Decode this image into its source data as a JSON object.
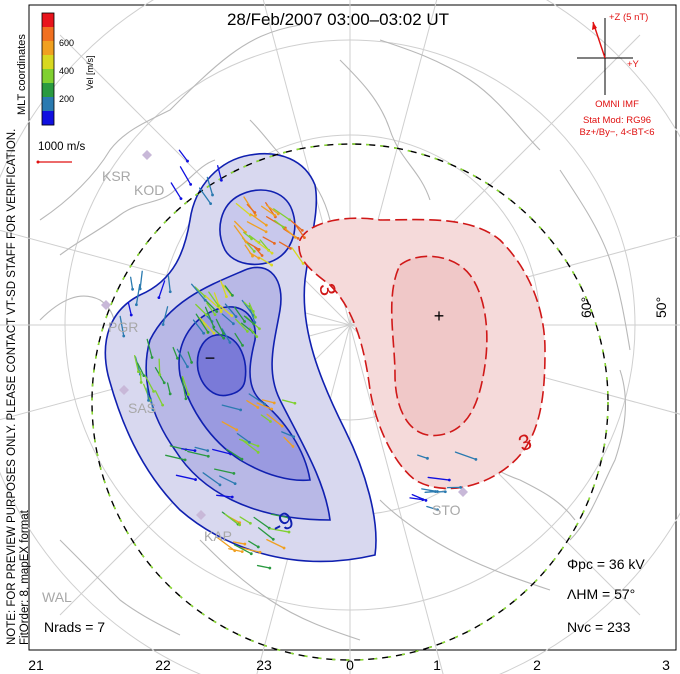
{
  "title": "28/Feb/2007 03:00–03:02 UT",
  "side_note_line1": "NOTE: FOR PREVIEW PURPOSES ONLY. PLEASE CONTACT VT-SD STAFF FOR VERIFICATION.",
  "side_note_line2": "FitOrder: 8, mapEX format",
  "coord_label": "MLT coordinates",
  "colorbar": {
    "label": "Vel [m/s]",
    "ticks": [
      "600",
      "400",
      "200"
    ],
    "colors": [
      "#e8141c",
      "#f07020",
      "#f0a020",
      "#d8d820",
      "#80d030",
      "#2a9a40",
      "#2a7ab0",
      "#1010e0"
    ]
  },
  "vector_scale_label": "1000 m/s",
  "imf": {
    "z_label": "+Z (5 nT)",
    "y_label": "+Y",
    "source": "OMNI IMF",
    "stat_mod": "Stat Mod: RG96",
    "condition": "Bz+/By−, 4<BT<6",
    "color": "#e01010"
  },
  "lat_labels": [
    "60°",
    "50°"
  ],
  "contour_labels": {
    "neg": "-9",
    "pos": "3",
    "pos2": "3"
  },
  "extrema": {
    "min": "−",
    "max": "+"
  },
  "stations": [
    "KSR",
    "KOD",
    "PGR",
    "SAS",
    "KAP",
    "STO",
    "WAL"
  ],
  "stats": {
    "phi_pc": "Φpc = 36 kV",
    "lambda_hm": "ΛHM = 57°",
    "n_vc": "Nvc = 233",
    "n_rads": "Nrads = 7"
  },
  "mlt_ticks": [
    "21",
    "22",
    "23",
    "0",
    "1",
    "2",
    "3"
  ],
  "colors": {
    "neg_fill": "#c8c8ec",
    "neg_core": "#8080e0",
    "pos_fill": "#f4d6d6",
    "neg_line": "#1020b0",
    "pos_line": "#d01818"
  }
}
